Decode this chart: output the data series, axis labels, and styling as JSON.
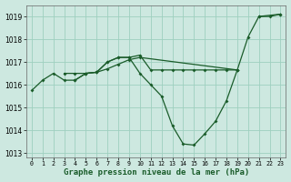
{
  "title": "Graphe pression niveau de la mer (hPa)",
  "background_color": "#cde8e0",
  "grid_color": "#9ecfbf",
  "line_color": "#1a5c2a",
  "ylim": [
    1012.8,
    1019.5
  ],
  "yticks": [
    1013,
    1014,
    1015,
    1016,
    1017,
    1018,
    1019
  ],
  "series": [
    {
      "x": [
        0,
        1,
        2,
        3,
        4,
        5,
        6,
        7,
        8,
        9,
        10,
        11,
        12,
        13,
        14,
        15,
        16,
        17,
        18,
        19
      ],
      "y": [
        1015.75,
        1016.2,
        1016.5,
        1016.2,
        1016.2,
        1016.5,
        1016.55,
        1017.0,
        1017.2,
        1017.2,
        1016.5,
        1016.0,
        1015.5,
        1014.2,
        1013.4,
        1013.35,
        1013.85,
        1014.4,
        1015.3,
        1016.65
      ]
    },
    {
      "x": [
        3,
        4,
        5,
        6,
        7,
        8,
        9,
        10,
        19
      ],
      "y": [
        1016.5,
        1016.5,
        1016.5,
        1016.55,
        1016.7,
        1016.9,
        1017.1,
        1017.2,
        1016.65
      ]
    },
    {
      "x": [
        4,
        5,
        6,
        7,
        8,
        9,
        10,
        11,
        12,
        13,
        14,
        15,
        16,
        17,
        18,
        19,
        20,
        21,
        23
      ],
      "y": [
        1016.2,
        1016.5,
        1016.55,
        1017.0,
        1017.2,
        1017.2,
        1017.3,
        1016.65,
        1016.65,
        1016.65,
        1016.65,
        1016.65,
        1016.65,
        1016.65,
        1016.65,
        1016.65,
        1018.1,
        1019.0,
        1019.1
      ]
    },
    {
      "x": [
        21,
        22,
        23
      ],
      "y": [
        1019.0,
        1019.0,
        1019.1
      ]
    }
  ],
  "x_ticks": [
    0,
    1,
    2,
    3,
    4,
    5,
    6,
    7,
    8,
    9,
    10,
    11,
    12,
    13,
    14,
    15,
    16,
    17,
    18,
    19,
    20,
    21,
    22,
    23
  ],
  "x_labels": [
    "0",
    "1",
    "2",
    "3",
    "4",
    "5",
    "6",
    "7",
    "8",
    "9",
    "10",
    "11",
    "12",
    "13",
    "14",
    "15",
    "16",
    "17",
    "18",
    "19",
    "20",
    "21",
    "22",
    "23"
  ]
}
